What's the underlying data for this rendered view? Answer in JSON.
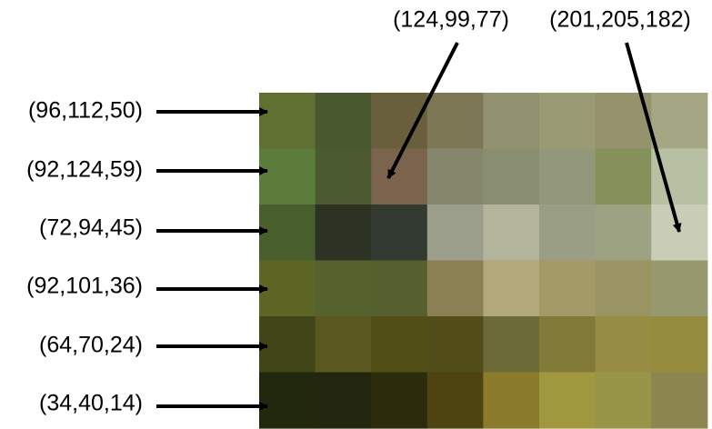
{
  "row_labels": [
    "(96,112,50)",
    "(92,124,59)",
    "(72,94,45)",
    "(92,101,36)",
    "(64,70,24)",
    "(34,40,14)"
  ],
  "top_labels": [
    "(124,99,77)",
    "(201,205,182)"
  ],
  "grid_colors": [
    [
      "#607032",
      "#4a5830",
      "#6a5f3c",
      "#7e7755",
      "#929270",
      "#9a9a74",
      "#94936c",
      "#a4a684"
    ],
    [
      "#5c7c3b",
      "#4c5a32",
      "#7c634d",
      "#86866c",
      "#8a8e70",
      "#94987a",
      "#84925a",
      "#b8c0a4"
    ],
    [
      "#485e2d",
      "#2c3324",
      "#323a32",
      "#9c9e8c",
      "#b2b49c",
      "#9a9e84",
      "#9ca282",
      "#c9cdb6"
    ],
    [
      "#5c6524",
      "#56622e",
      "#56602e",
      "#8a8054",
      "#b2a87c",
      "#a49a68",
      "#9a9462",
      "#98986e"
    ],
    [
      "#404618",
      "#5a5820",
      "#524f16",
      "#524c18",
      "#6c6a36",
      "#827a38",
      "#968c44",
      "#968c3e"
    ],
    [
      "#22280e",
      "#23260f",
      "#2c2c0c",
      "#4e4412",
      "#8a7c2c",
      "#a0983e",
      "#989448",
      "#8e8650"
    ]
  ]
}
